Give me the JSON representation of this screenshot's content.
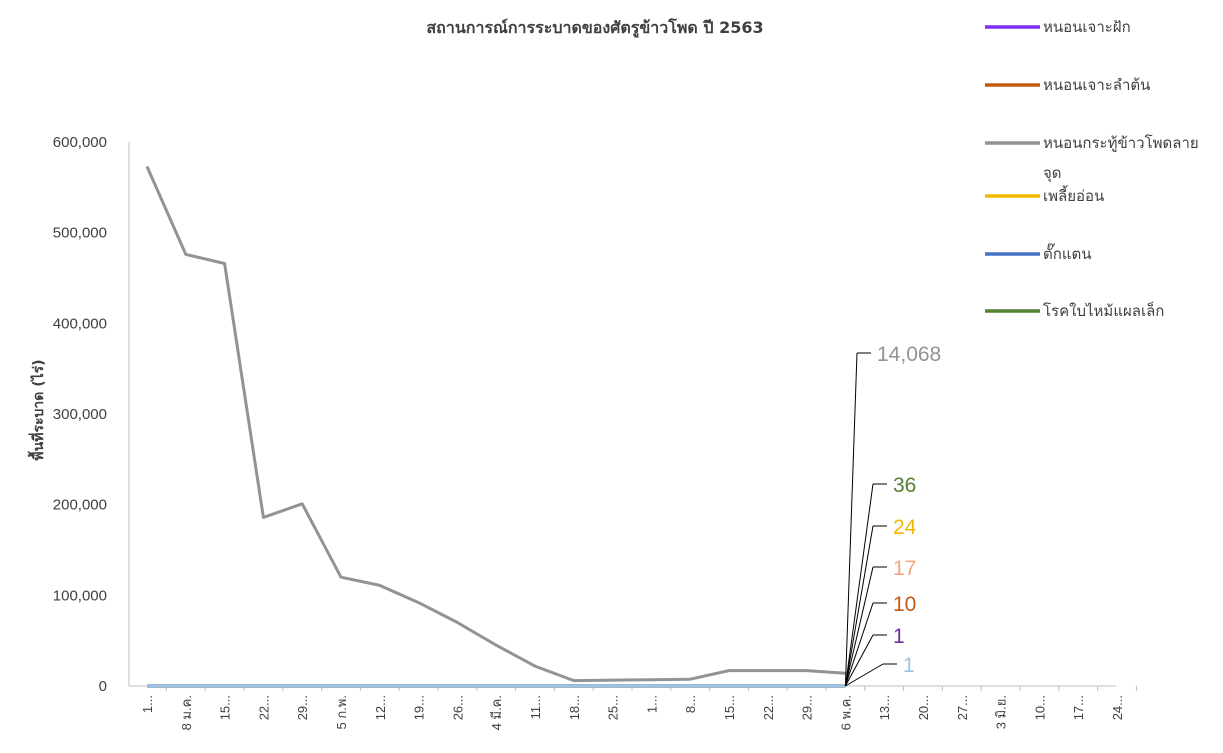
{
  "chart_data": {
    "type": "line",
    "title": "สถานการณ์การระบาดของศัตรูข้าวโพด ปี  2563",
    "ylabel": "พื้นที่ระบาด (ไร่)",
    "xlabel": "",
    "ylim": [
      0,
      600000
    ],
    "yticks": [
      0,
      100000,
      200000,
      300000,
      400000,
      500000,
      600000
    ],
    "ytick_labels": [
      "0",
      "100,000",
      "200,000",
      "300,000",
      "400,000",
      "500,000",
      "600,000"
    ],
    "categories": [
      "1...",
      "8 ม.ค.",
      "15...",
      "22...",
      "29...",
      "5 ก.พ.",
      "12...",
      "19...",
      "26...",
      "4 มี.ค.",
      "11...",
      "18...",
      "25...",
      "1...",
      "8...",
      "15...",
      "22...",
      "29...",
      "6 พ.ค.",
      "13...",
      "20...",
      "27...",
      "3 มิ.ย.",
      "10...",
      "17...",
      "24..."
    ],
    "grid": false,
    "legend_position": "right",
    "series": [
      {
        "name": "หนอนเจาะฝัก",
        "color": "#7B2FF7",
        "values": [
          0,
          0,
          0,
          0,
          0,
          0,
          0,
          0,
          0,
          0,
          0,
          0,
          0,
          0,
          0,
          0,
          0,
          0,
          1,
          null,
          null,
          null,
          null,
          null,
          null,
          null
        ]
      },
      {
        "name": "หนอนเจาะลำต้น",
        "color": "#C55A11",
        "values": [
          0,
          0,
          0,
          0,
          0,
          0,
          0,
          0,
          0,
          0,
          0,
          0,
          0,
          0,
          0,
          0,
          0,
          0,
          10,
          null,
          null,
          null,
          null,
          null,
          null,
          null
        ]
      },
      {
        "name": "หนอนกระทู้ข้าวโพดลายจุด",
        "color": "#939393",
        "values": [
          573000,
          476000,
          466000,
          186000,
          201000,
          120000,
          111000,
          92000,
          70000,
          45000,
          22000,
          6000,
          6500,
          6800,
          7500,
          17000,
          17000,
          17000,
          14068,
          null,
          null,
          null,
          null,
          null,
          null,
          null
        ]
      },
      {
        "name": "เพลี้ยอ่อน",
        "color": "#F2B600",
        "values": [
          0,
          0,
          0,
          0,
          0,
          0,
          0,
          0,
          0,
          0,
          0,
          0,
          0,
          0,
          0,
          0,
          0,
          0,
          24,
          null,
          null,
          null,
          null,
          null,
          null,
          null
        ]
      },
      {
        "name": "ตั๊กแตน",
        "color": "#4472C4",
        "values": [
          0,
          0,
          0,
          0,
          0,
          0,
          0,
          0,
          0,
          0,
          0,
          0,
          0,
          0,
          0,
          0,
          0,
          0,
          0,
          null,
          null,
          null,
          null,
          null,
          null,
          null
        ]
      },
      {
        "name": "โรคใบไหม้แผลเล็ก",
        "color": "#548235",
        "values": [
          0,
          0,
          0,
          0,
          0,
          0,
          0,
          0,
          0,
          0,
          0,
          0,
          0,
          0,
          0,
          0,
          0,
          0,
          36,
          null,
          null,
          null,
          null,
          null,
          null,
          null
        ]
      },
      {
        "name": "",
        "color": "#F4A582",
        "values": [
          0,
          0,
          0,
          0,
          0,
          0,
          0,
          0,
          0,
          0,
          0,
          0,
          0,
          0,
          0,
          0,
          0,
          0,
          17,
          null,
          null,
          null,
          null,
          null,
          null,
          null
        ]
      },
      {
        "name": "",
        "color": "#9DC3E6",
        "values": [
          0,
          0,
          0,
          0,
          0,
          0,
          0,
          0,
          0,
          0,
          0,
          0,
          0,
          0,
          0,
          0,
          0,
          0,
          1,
          null,
          null,
          null,
          null,
          null,
          null,
          null
        ]
      }
    ],
    "annotations": [
      {
        "text": "14,068",
        "color": "#939393"
      },
      {
        "text": "36",
        "color": "#548235"
      },
      {
        "text": "24",
        "color": "#F2B600"
      },
      {
        "text": "17",
        "color": "#F4A582"
      },
      {
        "text": "10",
        "color": "#C55A11"
      },
      {
        "text": "1",
        "color": "#7030A0"
      },
      {
        "text": "1",
        "color": "#9DC3E6"
      }
    ]
  }
}
